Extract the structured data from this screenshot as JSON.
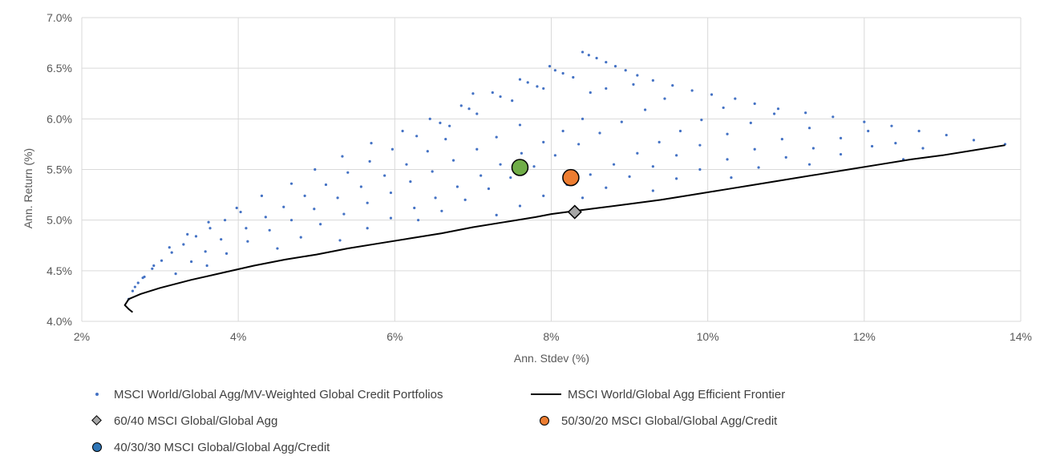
{
  "chart_data": {
    "type": "scatter",
    "title": "",
    "xlabel": "Ann. Stdev (%)",
    "ylabel": "Ann. Return (%)",
    "xlim": [
      2,
      14
    ],
    "ylim": [
      4.0,
      7.0
    ],
    "x_ticks": [
      2,
      4,
      6,
      8,
      10,
      12,
      14
    ],
    "x_tick_labels": [
      "2%",
      "4%",
      "6%",
      "8%",
      "10%",
      "12%",
      "14%"
    ],
    "y_ticks": [
      4.0,
      4.5,
      5.0,
      5.5,
      6.0,
      6.5,
      7.0
    ],
    "y_tick_labels": [
      "4.0%",
      "4.5%",
      "5.0%",
      "5.5%",
      "6.0%",
      "6.5%",
      "7.0%"
    ],
    "grid": true,
    "legend_position": "bottom",
    "colors": {
      "dots": "#4472c4",
      "frontier": "#000000",
      "diamond": "#a6a6a6",
      "orange": "#ed7d31",
      "green": "#70ad47",
      "legend_blue": "#2e75b6",
      "grid": "#d9d9d9",
      "axis_text": "#595959"
    },
    "series": [
      {
        "name": "MSCI World/Global Agg/MV-Weighted Global Credit Portfolios",
        "kind": "dots",
        "points": [
          [
            2.6,
            4.22
          ],
          [
            2.65,
            4.3
          ],
          [
            2.72,
            4.38
          ],
          [
            2.8,
            4.44
          ],
          [
            2.9,
            4.52
          ],
          [
            3.02,
            4.6
          ],
          [
            3.15,
            4.68
          ],
          [
            3.3,
            4.76
          ],
          [
            3.46,
            4.84
          ],
          [
            3.64,
            4.92
          ],
          [
            3.83,
            5.0
          ],
          [
            4.03,
            5.08
          ],
          [
            2.68,
            4.34
          ],
          [
            2.78,
            4.43
          ],
          [
            2.92,
            4.55
          ],
          [
            3.12,
            4.73
          ],
          [
            3.35,
            4.86
          ],
          [
            3.62,
            4.98
          ],
          [
            3.98,
            5.12
          ],
          [
            4.3,
            5.24
          ],
          [
            4.68,
            5.36
          ],
          [
            4.98,
            5.5
          ],
          [
            5.33,
            5.63
          ],
          [
            5.7,
            5.76
          ],
          [
            3.2,
            4.47
          ],
          [
            3.4,
            4.59
          ],
          [
            3.58,
            4.69
          ],
          [
            3.78,
            4.81
          ],
          [
            4.1,
            4.92
          ],
          [
            4.35,
            5.03
          ],
          [
            4.58,
            5.13
          ],
          [
            4.85,
            5.24
          ],
          [
            5.12,
            5.35
          ],
          [
            5.4,
            5.47
          ],
          [
            5.68,
            5.58
          ],
          [
            5.97,
            5.7
          ],
          [
            3.6,
            4.55
          ],
          [
            3.85,
            4.67
          ],
          [
            4.12,
            4.79
          ],
          [
            4.4,
            4.9
          ],
          [
            4.68,
            5.0
          ],
          [
            4.97,
            5.11
          ],
          [
            5.27,
            5.22
          ],
          [
            5.57,
            5.33
          ],
          [
            5.87,
            5.44
          ],
          [
            6.15,
            5.55
          ],
          [
            6.42,
            5.68
          ],
          [
            6.65,
            5.8
          ],
          [
            6.1,
            5.88
          ],
          [
            6.28,
            5.83
          ],
          [
            6.45,
            6.0
          ],
          [
            6.58,
            5.96
          ],
          [
            6.7,
            5.93
          ],
          [
            6.85,
            6.13
          ],
          [
            6.95,
            6.1
          ],
          [
            7.05,
            6.05
          ],
          [
            7.25,
            6.26
          ],
          [
            7.35,
            6.22
          ],
          [
            7.5,
            6.18
          ],
          [
            4.5,
            4.72
          ],
          [
            4.8,
            4.83
          ],
          [
            5.05,
            4.96
          ],
          [
            5.35,
            5.06
          ],
          [
            5.65,
            5.17
          ],
          [
            5.95,
            5.27
          ],
          [
            6.2,
            5.38
          ],
          [
            6.48,
            5.48
          ],
          [
            6.75,
            5.59
          ],
          [
            7.05,
            5.7
          ],
          [
            7.3,
            5.82
          ],
          [
            7.6,
            5.94
          ],
          [
            5.3,
            4.8
          ],
          [
            5.65,
            4.92
          ],
          [
            5.95,
            5.02
          ],
          [
            6.25,
            5.12
          ],
          [
            6.52,
            5.22
          ],
          [
            6.8,
            5.33
          ],
          [
            7.1,
            5.44
          ],
          [
            7.35,
            5.55
          ],
          [
            7.62,
            5.66
          ],
          [
            7.9,
            5.77
          ],
          [
            8.15,
            5.88
          ],
          [
            8.4,
            6.0
          ],
          [
            6.3,
            5.0
          ],
          [
            6.6,
            5.09
          ],
          [
            6.9,
            5.2
          ],
          [
            7.2,
            5.31
          ],
          [
            7.48,
            5.42
          ],
          [
            7.78,
            5.53
          ],
          [
            8.05,
            5.64
          ],
          [
            8.35,
            5.75
          ],
          [
            8.62,
            5.86
          ],
          [
            8.9,
            5.97
          ],
          [
            9.2,
            6.09
          ],
          [
            9.45,
            6.2
          ],
          [
            7.6,
            6.39
          ],
          [
            7.7,
            6.36
          ],
          [
            7.82,
            6.32
          ],
          [
            7.98,
            6.52
          ],
          [
            8.05,
            6.48
          ],
          [
            8.15,
            6.45
          ],
          [
            8.28,
            6.41
          ],
          [
            8.4,
            6.66
          ],
          [
            8.48,
            6.63
          ],
          [
            8.58,
            6.6
          ],
          [
            8.7,
            6.56
          ],
          [
            8.82,
            6.52
          ],
          [
            8.95,
            6.48
          ],
          [
            9.1,
            6.43
          ],
          [
            7.3,
            5.05
          ],
          [
            7.6,
            5.14
          ],
          [
            7.9,
            5.24
          ],
          [
            8.2,
            5.35
          ],
          [
            8.5,
            5.45
          ],
          [
            8.8,
            5.55
          ],
          [
            9.1,
            5.66
          ],
          [
            9.38,
            5.77
          ],
          [
            9.65,
            5.88
          ],
          [
            9.92,
            5.99
          ],
          [
            10.2,
            6.11
          ],
          [
            10.35,
            6.2
          ],
          [
            7.0,
            6.25
          ],
          [
            7.9,
            6.3
          ],
          [
            8.5,
            6.26
          ],
          [
            8.7,
            6.3
          ],
          [
            9.05,
            6.34
          ],
          [
            9.3,
            6.38
          ],
          [
            9.55,
            6.33
          ],
          [
            9.8,
            6.28
          ],
          [
            10.05,
            6.24
          ],
          [
            10.6,
            6.15
          ],
          [
            10.9,
            6.1
          ],
          [
            11.25,
            6.06
          ],
          [
            11.6,
            6.02
          ],
          [
            12.0,
            5.97
          ],
          [
            12.35,
            5.93
          ],
          [
            12.7,
            5.88
          ],
          [
            13.05,
            5.84
          ],
          [
            13.4,
            5.79
          ],
          [
            13.8,
            5.75
          ],
          [
            8.4,
            5.22
          ],
          [
            8.7,
            5.32
          ],
          [
            9.0,
            5.43
          ],
          [
            9.3,
            5.53
          ],
          [
            9.6,
            5.64
          ],
          [
            9.9,
            5.74
          ],
          [
            10.25,
            5.85
          ],
          [
            10.55,
            5.96
          ],
          [
            10.85,
            6.05
          ],
          [
            9.3,
            5.29
          ],
          [
            9.6,
            5.41
          ],
          [
            9.9,
            5.5
          ],
          [
            10.25,
            5.6
          ],
          [
            10.6,
            5.7
          ],
          [
            10.95,
            5.8
          ],
          [
            11.3,
            5.91
          ],
          [
            10.3,
            5.42
          ],
          [
            10.65,
            5.52
          ],
          [
            11.0,
            5.62
          ],
          [
            11.35,
            5.71
          ],
          [
            11.7,
            5.81
          ],
          [
            12.05,
            5.88
          ],
          [
            12.4,
            5.76
          ],
          [
            11.3,
            5.55
          ],
          [
            11.7,
            5.65
          ],
          [
            12.1,
            5.73
          ],
          [
            12.5,
            5.6
          ],
          [
            12.75,
            5.71
          ]
        ]
      },
      {
        "name": "MSCI World/Global Agg Efficient Frontier",
        "kind": "line",
        "points": [
          [
            2.65,
            4.09
          ],
          [
            2.6,
            4.12
          ],
          [
            2.55,
            4.16
          ],
          [
            2.6,
            4.22
          ],
          [
            2.75,
            4.27
          ],
          [
            3.0,
            4.33
          ],
          [
            3.4,
            4.41
          ],
          [
            3.8,
            4.48
          ],
          [
            4.2,
            4.55
          ],
          [
            4.6,
            4.61
          ],
          [
            5.0,
            4.66
          ],
          [
            5.4,
            4.72
          ],
          [
            5.8,
            4.77
          ],
          [
            6.2,
            4.82
          ],
          [
            6.6,
            4.87
          ],
          [
            7.0,
            4.93
          ],
          [
            7.4,
            4.98
          ],
          [
            7.8,
            5.03
          ],
          [
            8.0,
            5.06
          ],
          [
            8.3,
            5.09
          ],
          [
            8.6,
            5.12
          ],
          [
            9.0,
            5.16
          ],
          [
            9.4,
            5.2
          ],
          [
            9.8,
            5.25
          ],
          [
            10.2,
            5.3
          ],
          [
            10.6,
            5.35
          ],
          [
            11.0,
            5.4
          ],
          [
            11.4,
            5.45
          ],
          [
            11.8,
            5.5
          ],
          [
            12.2,
            5.55
          ],
          [
            12.6,
            5.6
          ],
          [
            13.0,
            5.64
          ],
          [
            13.4,
            5.69
          ],
          [
            13.8,
            5.74
          ]
        ]
      },
      {
        "name": "60/40 MSCI Global/Global Agg",
        "kind": "diamond",
        "points": [
          [
            8.3,
            5.08
          ]
        ]
      },
      {
        "name": "50/30/20 MSCI Global/Global Agg/Credit",
        "kind": "circle-orange",
        "points": [
          [
            8.25,
            5.42
          ]
        ]
      },
      {
        "name": "40/30/30 MSCI Global/Global Agg/Credit",
        "kind": "circle-green",
        "points": [
          [
            7.6,
            5.52
          ]
        ]
      }
    ]
  },
  "legend": {
    "items": [
      "MSCI World/Global Agg/MV-Weighted Global Credit Portfolios",
      "MSCI World/Global Agg Efficient Frontier",
      "60/40 MSCI Global/Global Agg",
      "50/30/20 MSCI Global/Global Agg/Credit",
      "40/30/30 MSCI Global/Global Agg/Credit"
    ]
  }
}
